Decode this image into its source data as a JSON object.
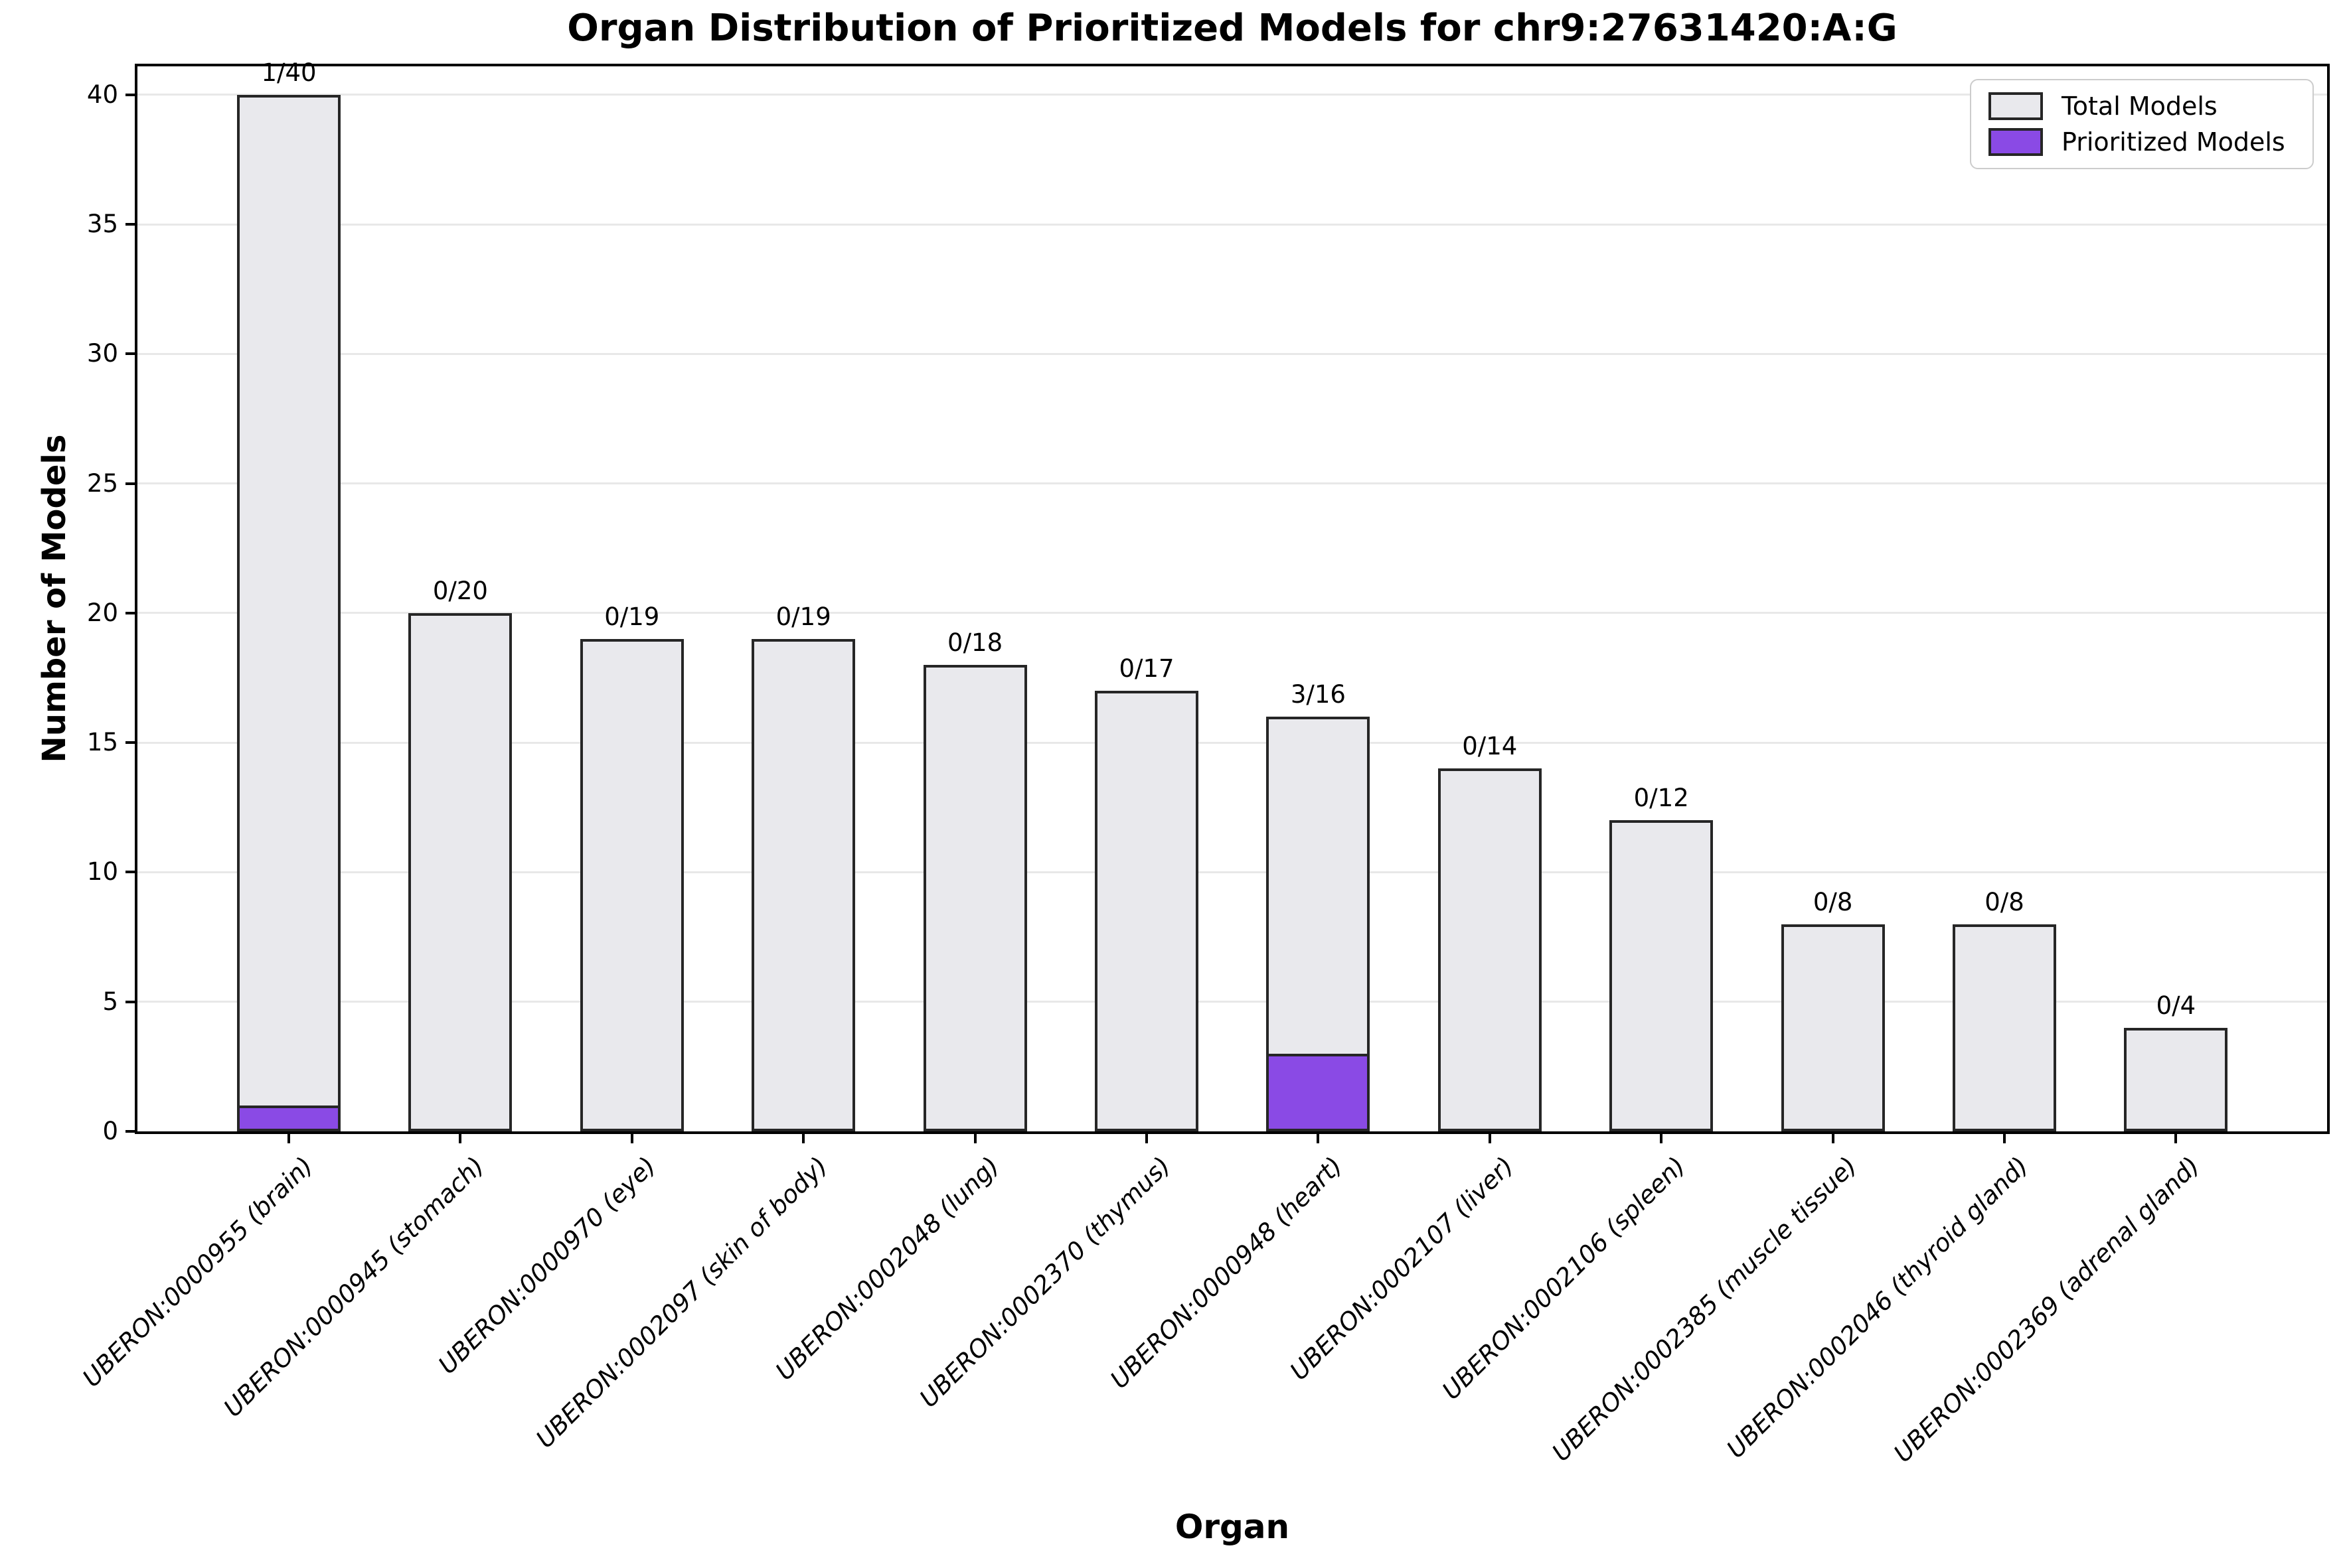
{
  "chart_data": {
    "type": "bar",
    "title": "Organ Distribution of Prioritized Models for chr9:27631420:A:G",
    "xlabel": "Organ",
    "ylabel": "Number of Models",
    "ylim": [
      0,
      41.1
    ],
    "yticks": [
      0,
      5,
      10,
      15,
      20,
      25,
      30,
      35,
      40
    ],
    "grid": "horizontal",
    "legend_position": "upper right",
    "categories": [
      "UBERON:0000955 (brain)",
      "UBERON:0000945 (stomach)",
      "UBERON:0000970 (eye)",
      "UBERON:0002097 (skin of body)",
      "UBERON:0002048 (lung)",
      "UBERON:0002370 (thymus)",
      "UBERON:0000948 (heart)",
      "UBERON:0002107 (liver)",
      "UBERON:0002106 (spleen)",
      "UBERON:0002385 (muscle tissue)",
      "UBERON:0002046 (thyroid gland)",
      "UBERON:0002369 (adrenal gland)"
    ],
    "series": [
      {
        "name": "Total Models",
        "values": [
          40,
          20,
          19,
          19,
          18,
          17,
          16,
          14,
          12,
          8,
          8,
          4
        ],
        "color": "#e9e9ed"
      },
      {
        "name": "Prioritized Models",
        "values": [
          1,
          0,
          0,
          0,
          0,
          0,
          3,
          0,
          0,
          0,
          0,
          0
        ],
        "color": "#8a4ae5"
      }
    ],
    "bar_labels": [
      "1/40",
      "0/20",
      "0/19",
      "0/19",
      "0/18",
      "0/17",
      "3/16",
      "0/14",
      "0/12",
      "0/8",
      "0/8",
      "0/4"
    ],
    "legend": {
      "entries": [
        {
          "label": "Total Models",
          "color": "#e9e9ed"
        },
        {
          "label": "Prioritized Models",
          "color": "#8a4ae5"
        }
      ]
    },
    "colors": {
      "bar_edge": "#262626",
      "gridline": "#e8e8e8",
      "spine": "#000000"
    }
  }
}
